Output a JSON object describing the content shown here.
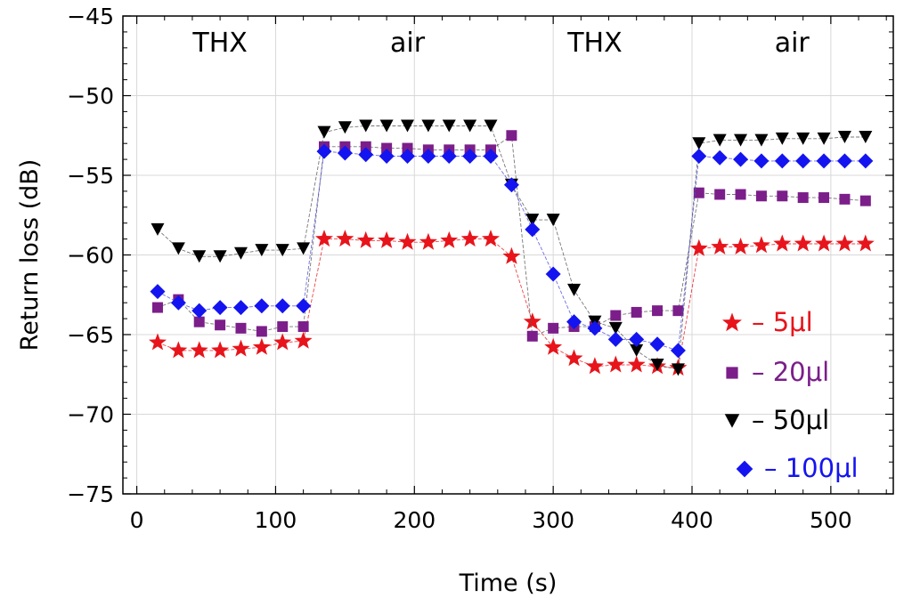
{
  "chart_data": {
    "type": "scatter",
    "title": "",
    "xlabel": "Time (s)",
    "ylabel": "Return loss (dB)",
    "xlim": [
      -10,
      545
    ],
    "ylim": [
      -75,
      -45
    ],
    "xticks": [
      0,
      100,
      200,
      300,
      400,
      500
    ],
    "yticks": [
      -75,
      -70,
      -65,
      -60,
      -55,
      -50,
      -45
    ],
    "grid": true,
    "legend_position": "bottom-right",
    "annotations": [
      {
        "text": "THX",
        "x": 60
      },
      {
        "text": "air",
        "x": 195
      },
      {
        "text": "THX",
        "x": 330
      },
      {
        "text": "air",
        "x": 472
      }
    ],
    "series": [
      {
        "name": "5μl",
        "legend_label": "– 5μl",
        "marker": "star",
        "color": "#e8141b",
        "x": [
          15,
          30,
          45,
          60,
          75,
          90,
          105,
          120,
          135,
          150,
          165,
          180,
          195,
          210,
          225,
          240,
          255,
          270,
          285,
          300,
          315,
          330,
          345,
          360,
          375,
          390,
          405,
          420,
          435,
          450,
          465,
          480,
          495,
          510,
          525
        ],
        "y": [
          -65.5,
          -66.0,
          -66.0,
          -66.0,
          -65.9,
          -65.8,
          -65.5,
          -65.4,
          -59.0,
          -59.0,
          -59.1,
          -59.1,
          -59.2,
          -59.2,
          -59.1,
          -59.0,
          -59.0,
          -60.1,
          -64.2,
          -65.8,
          -66.5,
          -67.0,
          -66.9,
          -66.9,
          -67.0,
          -67.1,
          -59.6,
          -59.5,
          -59.5,
          -59.4,
          -59.3,
          -59.3,
          -59.3,
          -59.3,
          -59.3
        ]
      },
      {
        "name": "20μl",
        "legend_label": "– 20μl",
        "marker": "square",
        "color": "#7b1e8a",
        "x": [
          15,
          30,
          45,
          60,
          75,
          90,
          105,
          120,
          135,
          150,
          165,
          180,
          195,
          210,
          225,
          240,
          255,
          270,
          285,
          300,
          315,
          330,
          345,
          360,
          375,
          390,
          405,
          420,
          435,
          450,
          465,
          480,
          495,
          510,
          525
        ],
        "y": [
          -63.3,
          -62.8,
          -64.2,
          -64.4,
          -64.6,
          -64.8,
          -64.5,
          -64.5,
          -53.2,
          -53.2,
          -53.2,
          -53.3,
          -53.3,
          -53.4,
          -53.4,
          -53.4,
          -53.4,
          -52.5,
          -65.1,
          -64.6,
          -64.5,
          -64.5,
          -63.8,
          -63.6,
          -63.5,
          -63.5,
          -56.1,
          -56.2,
          -56.2,
          -56.3,
          -56.3,
          -56.4,
          -56.4,
          -56.5,
          -56.6
        ]
      },
      {
        "name": "50μl",
        "legend_label": "– 50μl",
        "marker": "triangle-down",
        "color": "#000000",
        "x": [
          15,
          30,
          45,
          60,
          75,
          90,
          105,
          120,
          135,
          150,
          165,
          180,
          195,
          210,
          225,
          240,
          255,
          270,
          285,
          300,
          315,
          330,
          345,
          360,
          375,
          390,
          405,
          420,
          435,
          450,
          465,
          480,
          495,
          510,
          525
        ],
        "y": [
          -58.4,
          -59.6,
          -60.1,
          -60.1,
          -59.9,
          -59.7,
          -59.7,
          -59.6,
          -52.3,
          -52.0,
          -51.9,
          -51.9,
          -51.9,
          -51.9,
          -51.9,
          -51.9,
          -51.9,
          -55.6,
          -57.8,
          -57.8,
          -62.2,
          -64.2,
          -64.6,
          -66.0,
          -66.9,
          -67.2,
          -53.0,
          -52.8,
          -52.8,
          -52.8,
          -52.7,
          -52.7,
          -52.7,
          -52.6,
          -52.6
        ]
      },
      {
        "name": "100μl",
        "legend_label": "– 100μl",
        "marker": "diamond",
        "color": "#1414f0",
        "x": [
          15,
          30,
          45,
          60,
          75,
          90,
          105,
          120,
          135,
          150,
          165,
          180,
          195,
          210,
          225,
          240,
          255,
          270,
          285,
          300,
          315,
          330,
          345,
          360,
          375,
          390,
          405,
          420,
          435,
          450,
          465,
          480,
          495,
          510,
          525
        ],
        "y": [
          -62.3,
          -63.0,
          -63.5,
          -63.3,
          -63.3,
          -63.2,
          -63.2,
          -63.2,
          -53.5,
          -53.6,
          -53.7,
          -53.8,
          -53.8,
          -53.8,
          -53.8,
          -53.8,
          -53.8,
          -55.6,
          -58.4,
          -61.2,
          -64.2,
          -64.6,
          -65.3,
          -65.3,
          -65.6,
          -66.0,
          -53.8,
          -53.9,
          -54.0,
          -54.1,
          -54.1,
          -54.1,
          -54.1,
          -54.1,
          -54.1
        ]
      }
    ]
  }
}
